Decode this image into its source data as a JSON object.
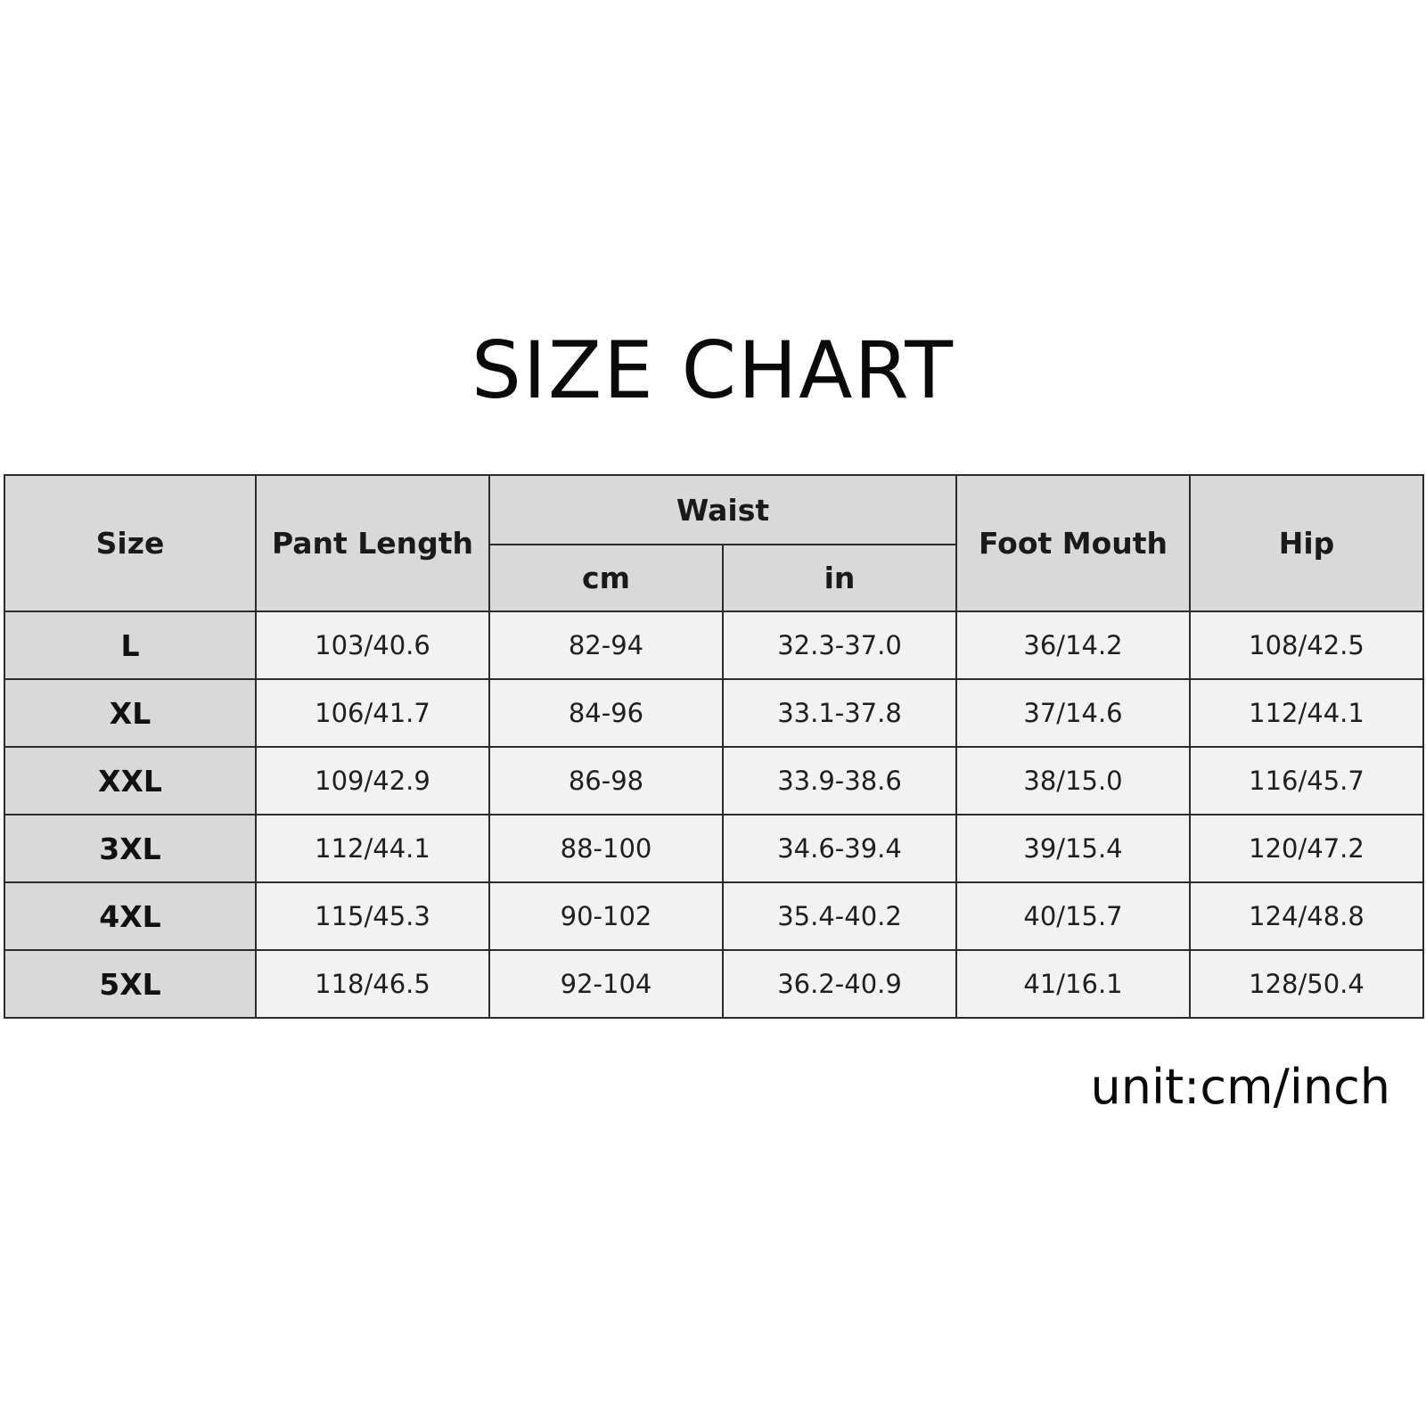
{
  "title": "SIZE CHART",
  "unit_note": "unit:cm/inch",
  "table": {
    "headers": {
      "size": "Size",
      "pant_length": "Pant Length",
      "waist": "Waist",
      "waist_cm": "cm",
      "waist_in": "in",
      "foot_mouth": "Foot Mouth",
      "hip": "Hip"
    },
    "rows": [
      {
        "size": "L",
        "pant_length": "103/40.6",
        "waist_cm": "82-94",
        "waist_in": "32.3-37.0",
        "foot_mouth": "36/14.2",
        "hip": "108/42.5"
      },
      {
        "size": "XL",
        "pant_length": "106/41.7",
        "waist_cm": "84-96",
        "waist_in": "33.1-37.8",
        "foot_mouth": "37/14.6",
        "hip": "112/44.1"
      },
      {
        "size": "XXL",
        "pant_length": "109/42.9",
        "waist_cm": "86-98",
        "waist_in": "33.9-38.6",
        "foot_mouth": "38/15.0",
        "hip": "116/45.7"
      },
      {
        "size": "3XL",
        "pant_length": "112/44.1",
        "waist_cm": "88-100",
        "waist_in": "34.6-39.4",
        "foot_mouth": "39/15.4",
        "hip": "120/47.2"
      },
      {
        "size": "4XL",
        "pant_length": "115/45.3",
        "waist_cm": "90-102",
        "waist_in": "35.4-40.2",
        "foot_mouth": "40/15.7",
        "hip": "124/48.8"
      },
      {
        "size": "5XL",
        "pant_length": "118/46.5",
        "waist_cm": "92-104",
        "waist_in": "36.2-40.9",
        "foot_mouth": "41/16.1",
        "hip": "128/50.4"
      }
    ]
  }
}
